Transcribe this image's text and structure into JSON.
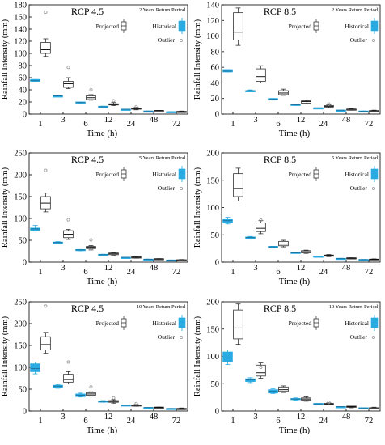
{
  "legend": {
    "projected": "Projected",
    "historical": "Historical",
    "outlier": "Outlier"
  },
  "colors": {
    "historical": "#29abe2",
    "projected_box": "#ffffff",
    "projected_stroke": "#333333",
    "outlier": "#999999"
  },
  "chart_data": [
    {
      "type": "box",
      "title": "RCP 4.5",
      "subtitle": "2 Years Return Period",
      "xlabel": "Time (h)",
      "ylabel": "Rainfall Intensity (mm)",
      "categories": [
        "1",
        "3",
        "6",
        "12",
        "24",
        "48",
        "72"
      ],
      "ylim": [
        0,
        180
      ],
      "yticks": [
        0,
        20,
        40,
        60,
        80,
        100,
        120,
        140,
        160,
        180
      ],
      "historical": [
        {
          "min": 54,
          "q1": 54,
          "median": 55,
          "q3": 57,
          "max": 57
        },
        {
          "min": 29,
          "q1": 29,
          "median": 30,
          "q3": 30,
          "max": 31
        },
        {
          "min": 18,
          "q1": 18,
          "median": 19,
          "q3": 20,
          "max": 20
        },
        {
          "min": 11,
          "q1": 11,
          "median": 12,
          "q3": 13,
          "max": 13
        },
        {
          "min": 7,
          "q1": 7,
          "median": 8,
          "q3": 8,
          "max": 8
        },
        {
          "min": 4,
          "q1": 4,
          "median": 5,
          "q3": 5,
          "max": 5
        },
        {
          "min": 3,
          "q1": 3,
          "median": 3.5,
          "q3": 4,
          "max": 4
        }
      ],
      "projected": [
        {
          "min": 95,
          "q1": 100,
          "median": 106,
          "q3": 118,
          "max": 124
        },
        {
          "min": 42,
          "q1": 44,
          "median": 50,
          "q3": 54,
          "max": 60
        },
        {
          "min": 23,
          "q1": 24,
          "median": 27,
          "q3": 30,
          "max": 32
        },
        {
          "min": 14,
          "q1": 15,
          "median": 16,
          "q3": 17,
          "max": 19
        },
        {
          "min": 7,
          "q1": 8,
          "median": 9,
          "q3": 10,
          "max": 11
        },
        {
          "min": 4,
          "q1": 5,
          "median": 5.5,
          "q3": 6,
          "max": 6
        },
        {
          "min": 3,
          "q1": 3.5,
          "median": 4,
          "q3": 4.5,
          "max": 5
        }
      ],
      "outliers": [
        {
          "category": "1",
          "value": 168
        },
        {
          "category": "3",
          "value": 77
        },
        {
          "category": "6",
          "value": 40
        },
        {
          "category": "12",
          "value": 22
        },
        {
          "category": "24",
          "value": 12
        }
      ]
    },
    {
      "type": "box",
      "title": "RCP 8.5",
      "subtitle": "2 Years Return Period",
      "xlabel": "Time (h)",
      "ylabel": "Rainfall Intensity (mm)",
      "categories": [
        "1",
        "3",
        "6",
        "12",
        "24",
        "48",
        "72"
      ],
      "ylim": [
        0,
        140
      ],
      "yticks": [
        0,
        20,
        40,
        60,
        80,
        100,
        120,
        140
      ],
      "historical": [
        {
          "min": 54,
          "q1": 54,
          "median": 55,
          "q3": 57,
          "max": 57
        },
        {
          "min": 29,
          "q1": 29,
          "median": 30,
          "q3": 30,
          "max": 31
        },
        {
          "min": 18,
          "q1": 18,
          "median": 19,
          "q3": 20,
          "max": 20
        },
        {
          "min": 11,
          "q1": 11,
          "median": 12,
          "q3": 13,
          "max": 13
        },
        {
          "min": 7,
          "q1": 7,
          "median": 8,
          "q3": 8,
          "max": 8
        },
        {
          "min": 4,
          "q1": 4,
          "median": 5,
          "q3": 5,
          "max": 5
        },
        {
          "min": 3,
          "q1": 3,
          "median": 3.5,
          "q3": 4,
          "max": 4
        }
      ],
      "projected": [
        {
          "min": 88,
          "q1": 95,
          "median": 105,
          "q3": 130,
          "max": 136
        },
        {
          "min": 40,
          "q1": 42,
          "median": 48,
          "q3": 58,
          "max": 62
        },
        {
          "min": 24,
          "q1": 25,
          "median": 27,
          "q3": 30,
          "max": 32
        },
        {
          "min": 13,
          "q1": 14,
          "median": 16,
          "q3": 17,
          "max": 18
        },
        {
          "min": 8,
          "q1": 9,
          "median": 10,
          "q3": 11,
          "max": 12
        },
        {
          "min": 5,
          "q1": 5.5,
          "median": 6,
          "q3": 6.5,
          "max": 7
        },
        {
          "min": 3,
          "q1": 3.5,
          "median": 4,
          "q3": 4.5,
          "max": 5
        }
      ],
      "outliers": [
        {
          "category": "24",
          "value": 13
        }
      ]
    },
    {
      "type": "box",
      "title": "RCP 4.5",
      "subtitle": "5 Years Return Period",
      "xlabel": "Time (h)",
      "ylabel": "Rainfall Intensity (mm)",
      "categories": [
        "1",
        "3",
        "6",
        "12",
        "24",
        "48",
        "72"
      ],
      "ylim": [
        0,
        250
      ],
      "yticks": [
        0,
        50,
        100,
        150,
        200,
        250
      ],
      "historical": [
        {
          "min": 72,
          "q1": 73,
          "median": 76,
          "q3": 78,
          "max": 84
        },
        {
          "min": 42,
          "q1": 43,
          "median": 45,
          "q3": 46,
          "max": 47
        },
        {
          "min": 26,
          "q1": 27,
          "median": 28,
          "q3": 29,
          "max": 29
        },
        {
          "min": 16,
          "q1": 16,
          "median": 17,
          "q3": 18,
          "max": 18
        },
        {
          "min": 10,
          "q1": 10,
          "median": 11,
          "q3": 11,
          "max": 11
        },
        {
          "min": 6,
          "q1": 6,
          "median": 6.5,
          "q3": 7,
          "max": 7
        },
        {
          "min": 4,
          "q1": 4,
          "median": 4.5,
          "q3": 5,
          "max": 5
        }
      ],
      "projected": [
        {
          "min": 115,
          "q1": 122,
          "median": 135,
          "q3": 150,
          "max": 158
        },
        {
          "min": 52,
          "q1": 56,
          "median": 64,
          "q3": 72,
          "max": 75
        },
        {
          "min": 28,
          "q1": 31,
          "median": 34,
          "q3": 36,
          "max": 38
        },
        {
          "min": 16,
          "q1": 17,
          "median": 19,
          "q3": 21,
          "max": 22
        },
        {
          "min": 9,
          "q1": 10,
          "median": 11,
          "q3": 12,
          "max": 13
        },
        {
          "min": 6,
          "q1": 6,
          "median": 7,
          "q3": 8,
          "max": 8
        },
        {
          "min": 4,
          "q1": 4,
          "median": 5,
          "q3": 5.5,
          "max": 6
        }
      ],
      "outliers": [
        {
          "category": "1",
          "value": 210
        },
        {
          "category": "3",
          "value": 97
        },
        {
          "category": "6",
          "value": 51
        }
      ]
    },
    {
      "type": "box",
      "title": "RCP 8.5",
      "subtitle": "5 Years Return Period",
      "xlabel": "Time (h)",
      "ylabel": "Rainfall Intensity (mm)",
      "categories": [
        "1",
        "3",
        "6",
        "12",
        "24",
        "48",
        "72"
      ],
      "ylim": [
        0,
        200
      ],
      "yticks": [
        0,
        50,
        100,
        150,
        200
      ],
      "historical": [
        {
          "min": 70,
          "q1": 72,
          "median": 76,
          "q3": 78,
          "max": 82
        },
        {
          "min": 42,
          "q1": 43,
          "median": 45,
          "q3": 46,
          "max": 47
        },
        {
          "min": 26,
          "q1": 27,
          "median": 28,
          "q3": 29,
          "max": 29
        },
        {
          "min": 16,
          "q1": 16,
          "median": 17,
          "q3": 18,
          "max": 18
        },
        {
          "min": 10,
          "q1": 10,
          "median": 11,
          "q3": 11,
          "max": 11
        },
        {
          "min": 6,
          "q1": 6,
          "median": 6.5,
          "q3": 7,
          "max": 7
        },
        {
          "min": 4,
          "q1": 4,
          "median": 4.5,
          "q3": 5,
          "max": 5
        }
      ],
      "projected": [
        {
          "min": 112,
          "q1": 120,
          "median": 135,
          "q3": 162,
          "max": 172
        },
        {
          "min": 52,
          "q1": 56,
          "median": 62,
          "q3": 72,
          "max": 76
        },
        {
          "min": 28,
          "q1": 30,
          "median": 33,
          "q3": 38,
          "max": 40
        },
        {
          "min": 16,
          "q1": 17,
          "median": 19,
          "q3": 21,
          "max": 22
        },
        {
          "min": 10,
          "q1": 11,
          "median": 12,
          "q3": 13,
          "max": 14
        },
        {
          "min": 6,
          "q1": 6,
          "median": 7,
          "q3": 8,
          "max": 8
        },
        {
          "min": 4,
          "q1": 4,
          "median": 5,
          "q3": 5.5,
          "max": 6
        }
      ],
      "outliers": [
        {
          "category": "3",
          "value": 77
        }
      ]
    },
    {
      "type": "box",
      "title": "RCP 4.5",
      "subtitle": "10 Years Return Period",
      "xlabel": "Time (h)",
      "ylabel": "Rainfall Intensity (mm)",
      "categories": [
        "1",
        "3",
        "6",
        "12",
        "24",
        "48",
        "72"
      ],
      "ylim": [
        0,
        250
      ],
      "yticks": [
        0,
        50,
        100,
        150,
        200,
        250
      ],
      "historical": [
        {
          "min": 85,
          "q1": 90,
          "median": 97,
          "q3": 108,
          "max": 112
        },
        {
          "min": 52,
          "q1": 54,
          "median": 57,
          "q3": 59,
          "max": 61
        },
        {
          "min": 32,
          "q1": 33,
          "median": 36,
          "q3": 39,
          "max": 41
        },
        {
          "min": 20,
          "q1": 21,
          "median": 22,
          "q3": 23,
          "max": 24
        },
        {
          "min": 12,
          "q1": 12,
          "median": 13,
          "q3": 14,
          "max": 14
        },
        {
          "min": 7,
          "q1": 7,
          "median": 8,
          "q3": 8,
          "max": 8
        },
        {
          "min": 5,
          "q1": 5,
          "median": 5.5,
          "q3": 6,
          "max": 6
        }
      ],
      "projected": [
        {
          "min": 132,
          "q1": 140,
          "median": 152,
          "q3": 170,
          "max": 180
        },
        {
          "min": 62,
          "q1": 66,
          "median": 72,
          "q3": 84,
          "max": 90
        },
        {
          "min": 34,
          "q1": 36,
          "median": 39,
          "q3": 42,
          "max": 44
        },
        {
          "min": 18,
          "q1": 20,
          "median": 22,
          "q3": 24,
          "max": 26
        },
        {
          "min": 11,
          "q1": 12,
          "median": 13,
          "q3": 14,
          "max": 15
        },
        {
          "min": 6,
          "q1": 7,
          "median": 8,
          "q3": 9,
          "max": 9
        },
        {
          "min": 4,
          "q1": 5,
          "median": 5.5,
          "q3": 6,
          "max": 7
        }
      ],
      "outliers": [
        {
          "category": "1",
          "value": 240
        },
        {
          "category": "3",
          "value": 112
        },
        {
          "category": "6",
          "value": 55
        },
        {
          "category": "12",
          "value": 30
        },
        {
          "category": "24",
          "value": 17
        }
      ]
    },
    {
      "type": "box",
      "title": "RCP 8.5",
      "subtitle": "10 Years Return Period",
      "xlabel": "Time (h)",
      "ylabel": "Rainfall Intensity (mm)",
      "categories": [
        "1",
        "3",
        "6",
        "12",
        "24",
        "48",
        "72"
      ],
      "ylim": [
        0,
        200
      ],
      "yticks": [
        0,
        50,
        100,
        150,
        200
      ],
      "historical": [
        {
          "min": 85,
          "q1": 90,
          "median": 97,
          "q3": 108,
          "max": 112
        },
        {
          "min": 52,
          "q1": 54,
          "median": 57,
          "q3": 59,
          "max": 61
        },
        {
          "min": 32,
          "q1": 33,
          "median": 36,
          "q3": 39,
          "max": 41
        },
        {
          "min": 20,
          "q1": 21,
          "median": 22,
          "q3": 23,
          "max": 24
        },
        {
          "min": 12,
          "q1": 12,
          "median": 13,
          "q3": 14,
          "max": 14
        },
        {
          "min": 7,
          "q1": 7,
          "median": 8,
          "q3": 8,
          "max": 8
        },
        {
          "min": 5,
          "q1": 5,
          "median": 5.5,
          "q3": 6,
          "max": 6
        }
      ],
      "projected": [
        {
          "min": 122,
          "q1": 132,
          "median": 152,
          "q3": 185,
          "max": 196
        },
        {
          "min": 60,
          "q1": 64,
          "median": 70,
          "q3": 84,
          "max": 88
        },
        {
          "min": 34,
          "q1": 36,
          "median": 39,
          "q3": 44,
          "max": 46
        },
        {
          "min": 18,
          "q1": 20,
          "median": 22,
          "q3": 24,
          "max": 26
        },
        {
          "min": 11,
          "q1": 12,
          "median": 13,
          "q3": 14,
          "max": 15
        },
        {
          "min": 6,
          "q1": 7,
          "median": 8,
          "q3": 9,
          "max": 9
        },
        {
          "min": 4,
          "q1": 5,
          "median": 5.5,
          "q3": 6,
          "max": 7
        }
      ],
      "outliers": [
        {
          "category": "3",
          "value": 80
        },
        {
          "category": "24",
          "value": 16
        }
      ]
    }
  ]
}
